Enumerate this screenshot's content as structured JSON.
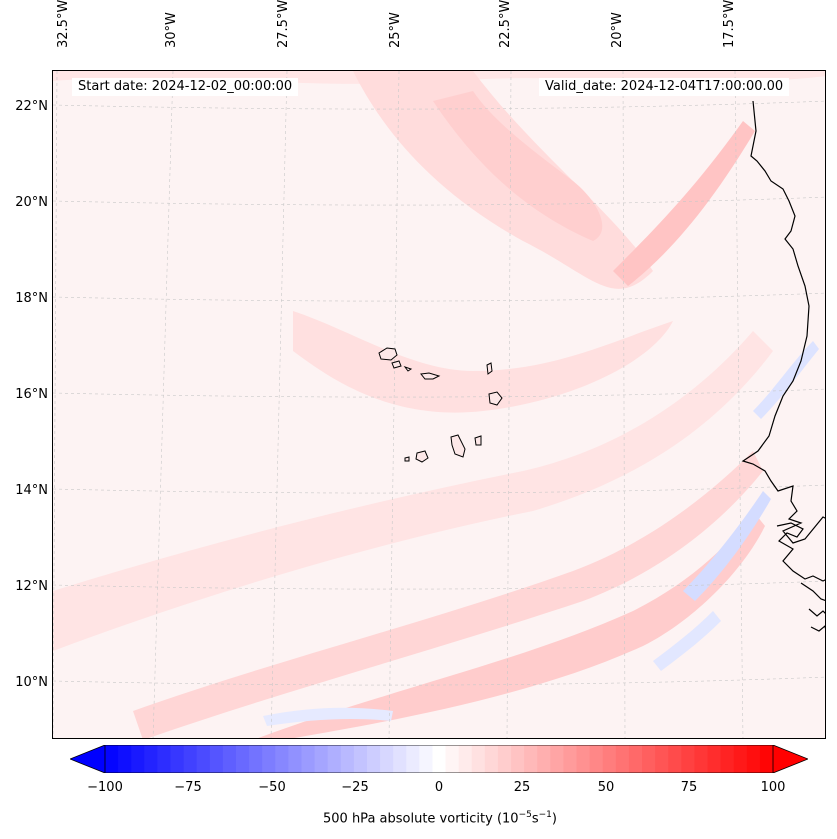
{
  "map": {
    "start_date": "Start date: 2024-12-02_00:00:00",
    "valid_date": "Valid_date: 2024-12-04T17:00:00.00",
    "lon_labels": [
      "32.5°W",
      "30°W",
      "27.5°W",
      "25°W",
      "22.5°W",
      "20°W",
      "17.5°W"
    ],
    "lat_labels": [
      "22°N",
      "20°N",
      "18°N",
      "16°N",
      "14°N",
      "12°N",
      "10°N"
    ],
    "colors": {
      "background": "#fdf3f3",
      "light_red": "#ffe0e0",
      "medium_red": "#ffc8c8",
      "strong_red": "#ffb0b0",
      "light_blue": "#e6ebff",
      "medium_blue": "#c8d2ff",
      "coastline": "#000000",
      "grid": "#c8c8c8"
    }
  },
  "colorbar": {
    "label_prefix": "500 hPa absolute vorticity (10",
    "label_exp1": "−5",
    "label_mid": "s",
    "label_exp2": "−1",
    "label_suffix": ")",
    "tick_labels": [
      "−100",
      "−75",
      "−50",
      "−25",
      "0",
      "25",
      "50",
      "75",
      "100"
    ],
    "min": -100,
    "max": 100,
    "levels": 51,
    "min_color": "#0000ff",
    "mid_color": "#ffffff",
    "max_color": "#ff0000"
  }
}
